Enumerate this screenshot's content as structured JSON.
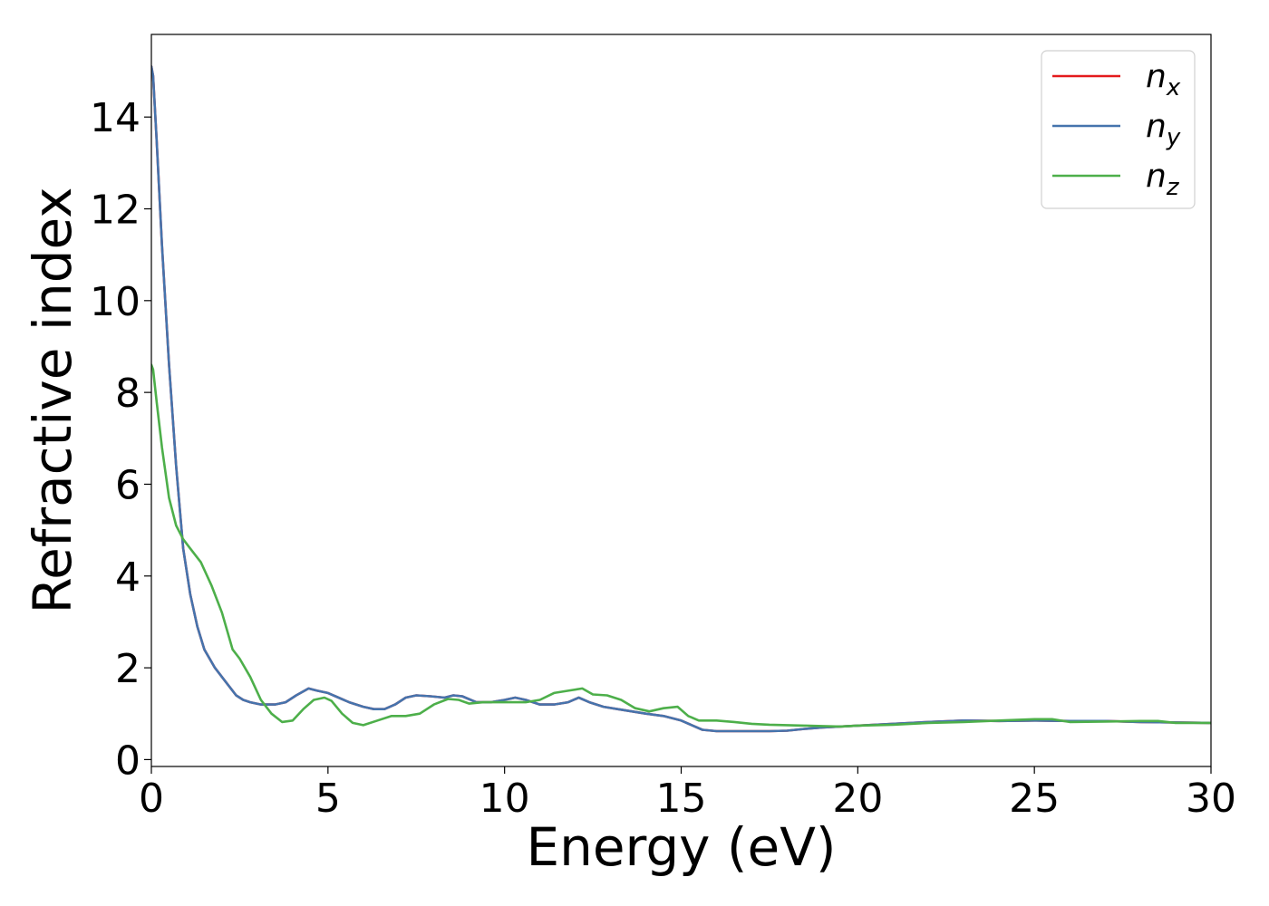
{
  "chart_data": {
    "type": "line",
    "title": "",
    "xlabel": "Energy (eV)",
    "ylabel": "Refractive index",
    "xlim": [
      0,
      30
    ],
    "ylim": [
      -0.15,
      15.8
    ],
    "xticks": [
      0,
      5,
      10,
      15,
      20,
      25,
      30
    ],
    "yticks": [
      0,
      2,
      4,
      6,
      8,
      10,
      12,
      14
    ],
    "grid": false,
    "legend_position": "top-right",
    "series": [
      {
        "name": "n_x",
        "legend_base": "n",
        "legend_sub": "x",
        "color": "#e41a1c",
        "x": [
          0,
          0.05,
          0.15,
          0.3,
          0.5,
          0.7,
          0.9,
          1.1,
          1.3,
          1.5,
          1.8,
          2.1,
          2.4,
          2.6,
          2.8,
          3.1,
          3.5,
          3.8,
          4.1,
          4.45,
          4.7,
          5.0,
          5.3,
          5.6,
          6.0,
          6.3,
          6.6,
          6.9,
          7.2,
          7.5,
          7.9,
          8.3,
          8.55,
          8.8,
          9.2,
          9.6,
          10.0,
          10.3,
          10.6,
          11.0,
          11.4,
          11.8,
          12.1,
          12.4,
          12.8,
          13.2,
          13.6,
          14.0,
          14.5,
          15.0,
          15.3,
          15.6,
          16.0,
          16.5,
          17.0,
          17.5,
          18.0,
          18.5,
          19.0,
          19.5,
          20.0,
          21.0,
          22.0,
          23.0,
          24.0,
          25.0,
          26.0,
          27.0,
          28.0,
          29.0,
          30.0
        ],
        "y": [
          15.1,
          14.9,
          13.5,
          11.2,
          8.6,
          6.4,
          4.6,
          3.6,
          2.9,
          2.4,
          2.0,
          1.7,
          1.4,
          1.3,
          1.25,
          1.2,
          1.2,
          1.25,
          1.4,
          1.55,
          1.5,
          1.45,
          1.35,
          1.25,
          1.15,
          1.1,
          1.1,
          1.2,
          1.35,
          1.4,
          1.38,
          1.35,
          1.4,
          1.38,
          1.25,
          1.25,
          1.3,
          1.35,
          1.3,
          1.2,
          1.2,
          1.25,
          1.35,
          1.25,
          1.15,
          1.1,
          1.05,
          1.0,
          0.95,
          0.85,
          0.75,
          0.65,
          0.62,
          0.62,
          0.62,
          0.62,
          0.63,
          0.67,
          0.7,
          0.72,
          0.74,
          0.78,
          0.82,
          0.85,
          0.84,
          0.85,
          0.84,
          0.84,
          0.82,
          0.81,
          0.8
        ]
      },
      {
        "name": "n_y",
        "legend_base": "n",
        "legend_sub": "y",
        "color": "#4574ad",
        "x": [
          0,
          0.05,
          0.15,
          0.3,
          0.5,
          0.7,
          0.9,
          1.1,
          1.3,
          1.5,
          1.8,
          2.1,
          2.4,
          2.6,
          2.8,
          3.1,
          3.5,
          3.8,
          4.1,
          4.45,
          4.7,
          5.0,
          5.3,
          5.6,
          6.0,
          6.3,
          6.6,
          6.9,
          7.2,
          7.5,
          7.9,
          8.3,
          8.55,
          8.8,
          9.2,
          9.6,
          10.0,
          10.3,
          10.6,
          11.0,
          11.4,
          11.8,
          12.1,
          12.4,
          12.8,
          13.2,
          13.6,
          14.0,
          14.5,
          15.0,
          15.3,
          15.6,
          16.0,
          16.5,
          17.0,
          17.5,
          18.0,
          18.5,
          19.0,
          19.5,
          20.0,
          21.0,
          22.0,
          23.0,
          24.0,
          25.0,
          26.0,
          27.0,
          28.0,
          29.0,
          30.0
        ],
        "y": [
          15.1,
          14.9,
          13.5,
          11.2,
          8.6,
          6.4,
          4.6,
          3.6,
          2.9,
          2.4,
          2.0,
          1.7,
          1.4,
          1.3,
          1.25,
          1.2,
          1.2,
          1.25,
          1.4,
          1.55,
          1.5,
          1.45,
          1.35,
          1.25,
          1.15,
          1.1,
          1.1,
          1.2,
          1.35,
          1.4,
          1.38,
          1.35,
          1.4,
          1.38,
          1.25,
          1.25,
          1.3,
          1.35,
          1.3,
          1.2,
          1.2,
          1.25,
          1.35,
          1.25,
          1.15,
          1.1,
          1.05,
          1.0,
          0.95,
          0.85,
          0.75,
          0.65,
          0.62,
          0.62,
          0.62,
          0.62,
          0.63,
          0.67,
          0.7,
          0.72,
          0.74,
          0.78,
          0.82,
          0.85,
          0.84,
          0.85,
          0.84,
          0.84,
          0.82,
          0.81,
          0.8
        ]
      },
      {
        "name": "n_z",
        "legend_base": "n",
        "legend_sub": "z",
        "color": "#4daf4a",
        "x": [
          0,
          0.05,
          0.15,
          0.3,
          0.5,
          0.7,
          0.9,
          1.1,
          1.4,
          1.7,
          2.0,
          2.3,
          2.5,
          2.8,
          3.1,
          3.4,
          3.7,
          4.0,
          4.3,
          4.6,
          4.9,
          5.1,
          5.4,
          5.7,
          6.0,
          6.4,
          6.8,
          7.2,
          7.6,
          8.0,
          8.4,
          8.7,
          9.0,
          9.4,
          9.8,
          10.2,
          10.6,
          11.0,
          11.4,
          11.8,
          12.2,
          12.5,
          12.9,
          13.3,
          13.7,
          14.1,
          14.5,
          14.9,
          15.2,
          15.5,
          16.0,
          16.5,
          17.0,
          17.5,
          18.0,
          18.5,
          19.0,
          19.5,
          20.0,
          21.0,
          22.0,
          23.0,
          24.0,
          25.0,
          25.5,
          26.0,
          27.0,
          28.0,
          28.5,
          29.0,
          30.0
        ],
        "y": [
          8.6,
          8.5,
          7.8,
          6.8,
          5.7,
          5.1,
          4.8,
          4.6,
          4.3,
          3.8,
          3.2,
          2.4,
          2.2,
          1.8,
          1.3,
          1.0,
          0.82,
          0.85,
          1.1,
          1.3,
          1.35,
          1.28,
          1.0,
          0.8,
          0.75,
          0.85,
          0.95,
          0.95,
          1.0,
          1.2,
          1.32,
          1.3,
          1.22,
          1.25,
          1.25,
          1.25,
          1.25,
          1.3,
          1.45,
          1.5,
          1.55,
          1.42,
          1.4,
          1.3,
          1.12,
          1.05,
          1.12,
          1.15,
          0.95,
          0.85,
          0.85,
          0.82,
          0.78,
          0.76,
          0.75,
          0.74,
          0.73,
          0.72,
          0.74,
          0.76,
          0.8,
          0.82,
          0.85,
          0.88,
          0.88,
          0.82,
          0.83,
          0.84,
          0.84,
          0.8,
          0.8
        ]
      }
    ]
  }
}
